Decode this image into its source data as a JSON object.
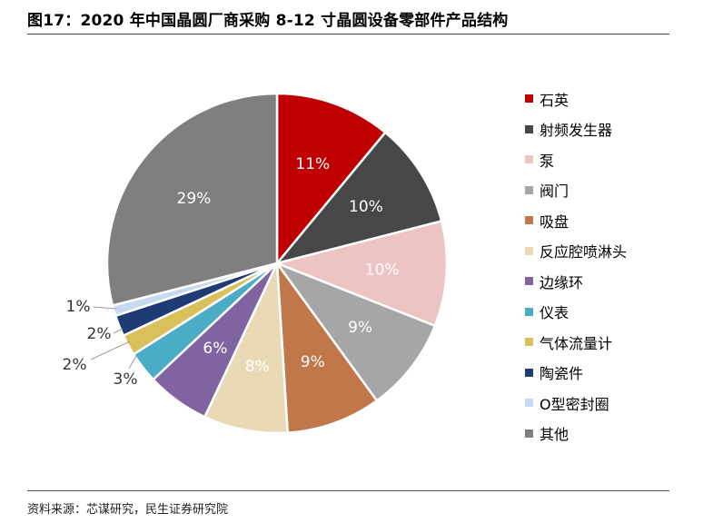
{
  "title": "图17：2020 年中国晶圆厂商采购 8-12 寸晶圆设备零部件产品结构",
  "source": "资料来源：芯谋研究，民生证券研究院",
  "chart_data": {
    "type": "pie",
    "title": "图17：2020 年中国晶圆厂商采购 8-12 寸晶圆设备零部件产品结构",
    "legend_position": "right",
    "slices": [
      {
        "name": "石英",
        "value": 11,
        "label": "11%",
        "color": "#c00000",
        "label_inside": true
      },
      {
        "name": "射频发生器",
        "value": 10,
        "label": "10%",
        "color": "#474747",
        "label_inside": true
      },
      {
        "name": "泵",
        "value": 10,
        "label": "10%",
        "color": "#ecc4c4",
        "label_inside": true
      },
      {
        "name": "阀门",
        "value": 9,
        "label": "9%",
        "color": "#a6a6a6",
        "label_inside": true
      },
      {
        "name": "吸盘",
        "value": 9,
        "label": "9%",
        "color": "#c0784a",
        "label_inside": true
      },
      {
        "name": "反应腔喷淋头",
        "value": 8,
        "label": "8%",
        "color": "#e9d9b5",
        "label_inside": true
      },
      {
        "name": "边缘环",
        "value": 6,
        "label": "6%",
        "color": "#8064a2",
        "label_inside": true
      },
      {
        "name": "仪表",
        "value": 3,
        "label": "3%",
        "color": "#4bacc6",
        "label_inside": false
      },
      {
        "name": "气体流量计",
        "value": 2,
        "label": "2%",
        "color": "#d9c05b",
        "label_inside": false
      },
      {
        "name": "陶瓷件",
        "value": 2,
        "label": "2%",
        "color": "#1f3b73",
        "label_inside": false
      },
      {
        "name": "O型密封圈",
        "value": 1,
        "label": "1%",
        "color": "#c6d9f1",
        "label_inside": false
      },
      {
        "name": "其他",
        "value": 29,
        "label": "29%",
        "color": "#7f7f7f",
        "label_inside": true
      }
    ]
  }
}
